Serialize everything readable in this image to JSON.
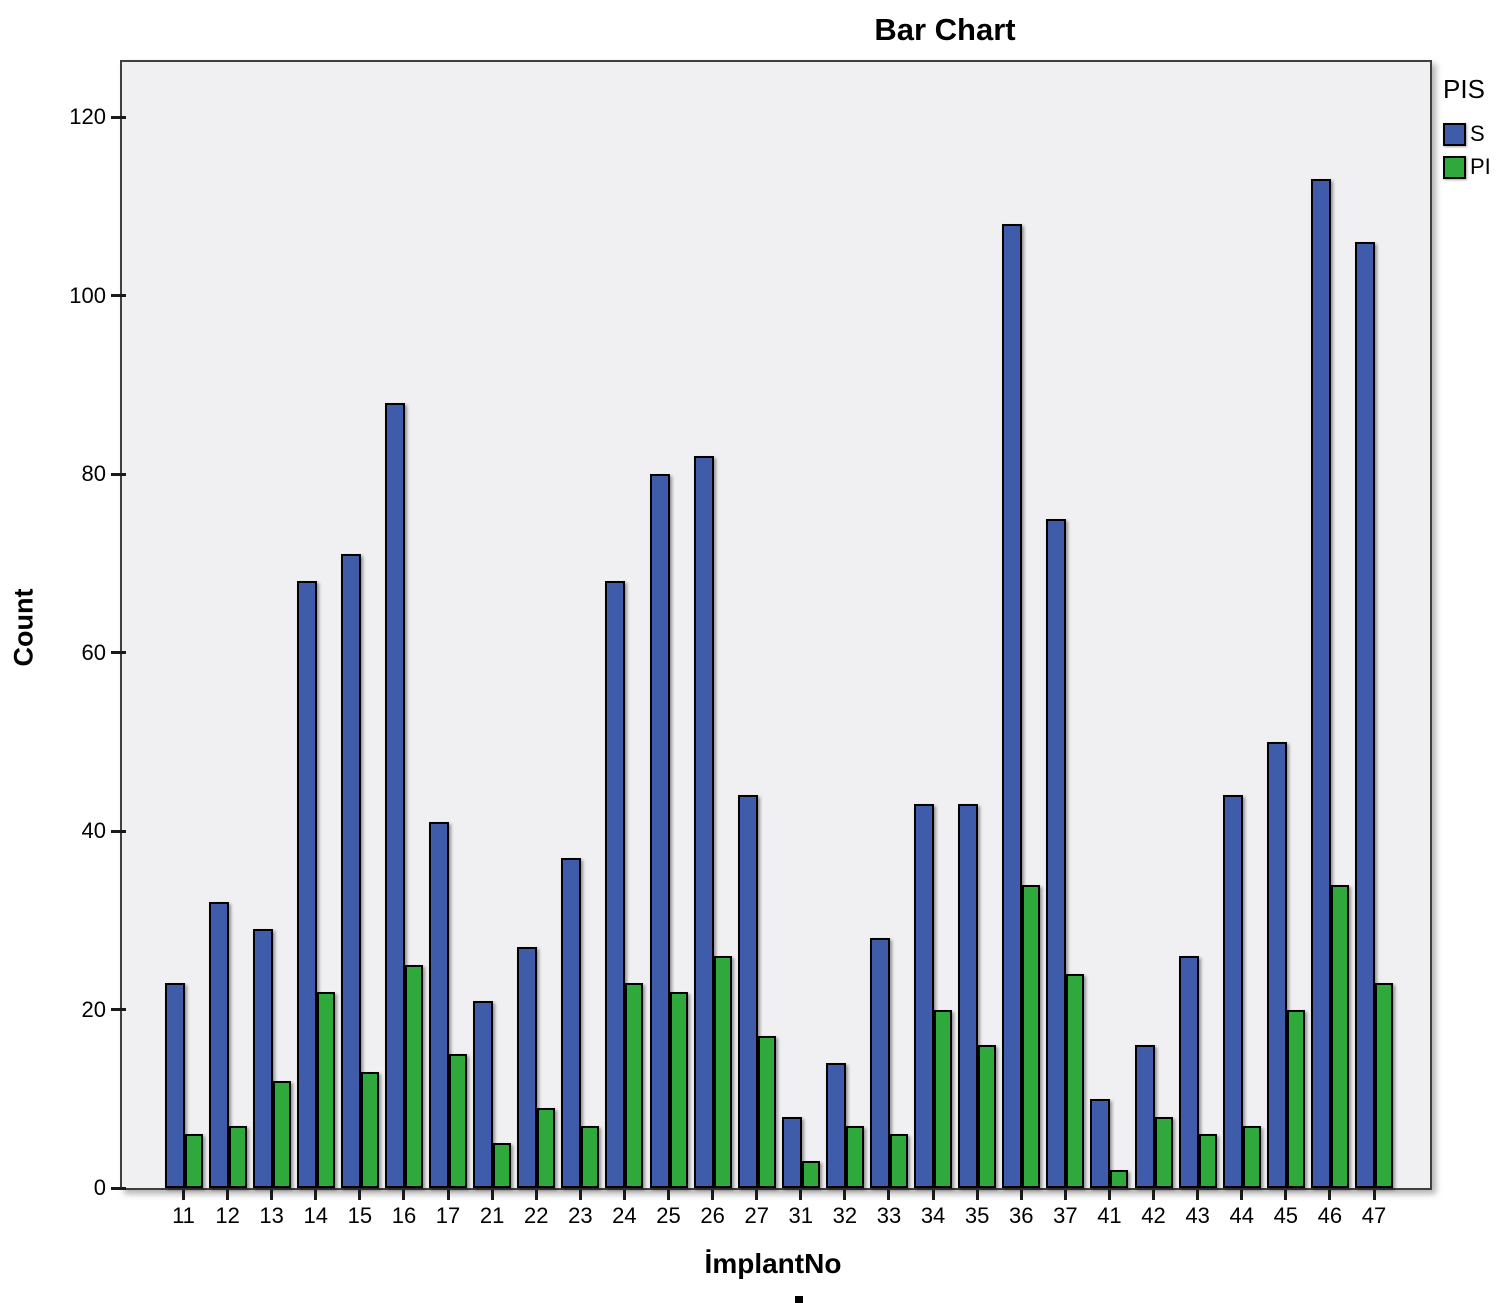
{
  "title": "Bar Chart",
  "colors": {
    "bar_blue": "#3E5CA9",
    "bar_green": "#2FA83C",
    "plot_background": "#F0F0F2",
    "frame_border": "#3F3F3F"
  },
  "legend": {
    "title": "PIS",
    "entries": [
      {
        "label": "S",
        "color": "#3E5CA9"
      },
      {
        "label": "PI",
        "color": "#2FA83C"
      }
    ]
  },
  "chart_data": {
    "type": "bar",
    "title": "Bar Chart",
    "xlabel": "İmplantNo",
    "ylabel": "Count",
    "ylim": [
      0,
      126
    ],
    "yticks": [
      0,
      20,
      40,
      60,
      80,
      100,
      120
    ],
    "grid": false,
    "legend_title": "PIS",
    "legend_position": "top-right-outside",
    "categories": [
      "11",
      "12",
      "13",
      "14",
      "15",
      "16",
      "17",
      "21",
      "22",
      "23",
      "24",
      "25",
      "26",
      "27",
      "31",
      "32",
      "33",
      "34",
      "35",
      "36",
      "37",
      "41",
      "42",
      "43",
      "44",
      "45",
      "46",
      "47"
    ],
    "series": [
      {
        "name": "S",
        "color": "#3E5CA9",
        "values": [
          23,
          32,
          29,
          68,
          71,
          88,
          41,
          21,
          27,
          37,
          68,
          80,
          82,
          44,
          8,
          14,
          28,
          43,
          43,
          108,
          75,
          10,
          16,
          26,
          44,
          50,
          113,
          106
        ]
      },
      {
        "name": "PI",
        "color": "#2FA83C",
        "values": [
          6,
          7,
          12,
          22,
          13,
          25,
          15,
          5,
          9,
          7,
          23,
          22,
          26,
          17,
          3,
          7,
          6,
          20,
          16,
          34,
          24,
          2,
          8,
          6,
          7,
          20,
          34,
          23
        ]
      }
    ]
  }
}
